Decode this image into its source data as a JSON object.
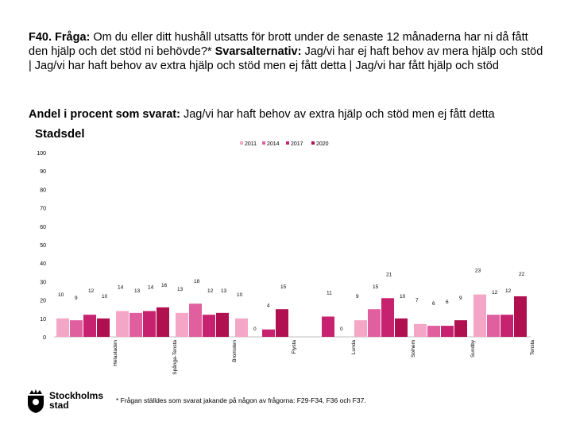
{
  "question": {
    "label": "F40. Fråga:",
    "text": " Om du eller ditt hushåll utsatts för brott under de senaste 12 månaderna har ni då fått den hjälp och det stöd ni behövde?* ",
    "alt_label": "Svarsalternativ:",
    "alt_text": " Jag/vi har ej haft behov av mera hjälp och stöd | Jag/vi har haft behov av extra hjälp och stöd men ej fått detta | Jag/vi har fått hjälp och stöd"
  },
  "subtitle": {
    "label": "Andel i procent som svarat:",
    "text": " Jag/vi har haft behov av extra hjälp och stöd men ej fått detta"
  },
  "section_title": "Stadsdel",
  "footnote": "* Frågan ställdes som svarat jakande på någon av frågorna: F29-F34, F36 och F37.",
  "logo": {
    "line1": "Stockholms",
    "line2": "stad"
  },
  "colors": {
    "2011": "#f4a6c6",
    "2014": "#e0609f",
    "2017": "#c7226f",
    "2020": "#b0104f"
  },
  "chart_data": {
    "type": "bar",
    "title": "",
    "xlabel": "",
    "ylabel": "",
    "ylim": [
      0,
      100
    ],
    "yticks": [
      0,
      10,
      20,
      30,
      40,
      50,
      60,
      70,
      80,
      90,
      100
    ],
    "grid": false,
    "legend_position": "top",
    "categories": [
      "Helastaden",
      "Spånga-Tensta",
      "Bromsten",
      "Flysta",
      "Lunda",
      "Solhem",
      "Sundby",
      "Tensta"
    ],
    "series": [
      {
        "name": "2011",
        "values": [
          10,
          14,
          13,
          10,
          null,
          9,
          7,
          23
        ]
      },
      {
        "name": "2014",
        "values": [
          9,
          13,
          18,
          0,
          null,
          15,
          6,
          12
        ]
      },
      {
        "name": "2017",
        "values": [
          12,
          14,
          12,
          4,
          11,
          21,
          6,
          12
        ]
      },
      {
        "name": "2020",
        "values": [
          10,
          16,
          13,
          15,
          0,
          10,
          9,
          22
        ]
      }
    ]
  }
}
